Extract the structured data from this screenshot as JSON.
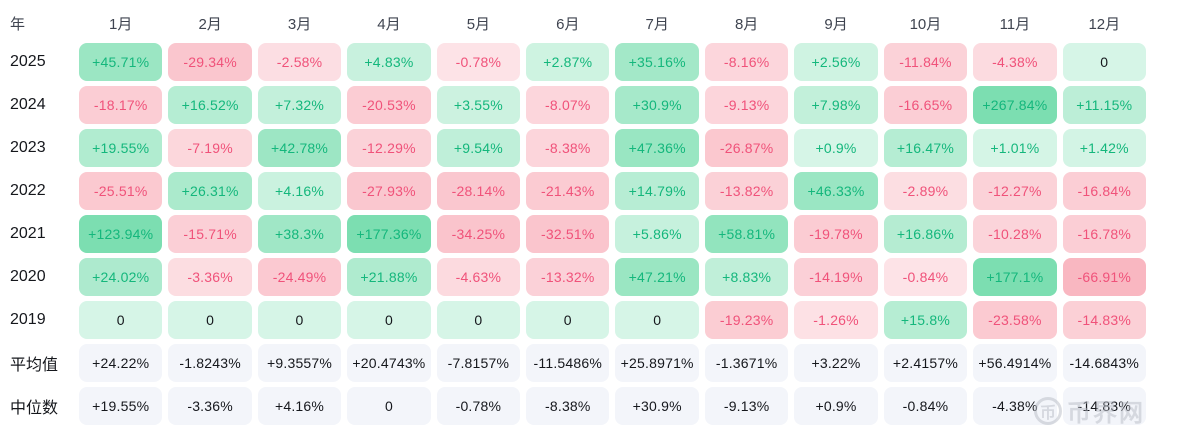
{
  "table": {
    "corner_label": "年",
    "months": [
      "1月",
      "2月",
      "3月",
      "4月",
      "5月",
      "6月",
      "7月",
      "8月",
      "9月",
      "10月",
      "11月",
      "12月"
    ],
    "rows": [
      {
        "label": "2025",
        "type": "year",
        "values": [
          "+45.71%",
          "-29.34%",
          "-2.58%",
          "+4.83%",
          "-0.78%",
          "+2.87%",
          "+35.16%",
          "-8.16%",
          "+2.56%",
          "-11.84%",
          "-4.38%",
          "0"
        ]
      },
      {
        "label": "2024",
        "type": "year",
        "values": [
          "-18.17%",
          "+16.52%",
          "+7.32%",
          "-20.53%",
          "+3.55%",
          "-8.07%",
          "+30.9%",
          "-9.13%",
          "+7.98%",
          "-16.65%",
          "+267.84%",
          "+11.15%"
        ]
      },
      {
        "label": "2023",
        "type": "year",
        "values": [
          "+19.55%",
          "-7.19%",
          "+42.78%",
          "-12.29%",
          "+9.54%",
          "-8.38%",
          "+47.36%",
          "-26.87%",
          "+0.9%",
          "+16.47%",
          "+1.01%",
          "+1.42%"
        ]
      },
      {
        "label": "2022",
        "type": "year",
        "values": [
          "-25.51%",
          "+26.31%",
          "+4.16%",
          "-27.93%",
          "-28.14%",
          "-21.43%",
          "+14.79%",
          "-13.82%",
          "+46.33%",
          "-2.89%",
          "-12.27%",
          "-16.84%"
        ]
      },
      {
        "label": "2021",
        "type": "year",
        "values": [
          "+123.94%",
          "-15.71%",
          "+38.3%",
          "+177.36%",
          "-34.25%",
          "-32.51%",
          "+5.86%",
          "+58.81%",
          "-19.78%",
          "+16.86%",
          "-10.28%",
          "-16.78%"
        ]
      },
      {
        "label": "2020",
        "type": "year",
        "values": [
          "+24.02%",
          "-3.36%",
          "-24.49%",
          "+21.88%",
          "-4.63%",
          "-13.32%",
          "+47.21%",
          "+8.83%",
          "-14.19%",
          "-0.84%",
          "+177.1%",
          "-66.91%"
        ]
      },
      {
        "label": "2019",
        "type": "year",
        "values": [
          "0",
          "0",
          "0",
          "0",
          "0",
          "0",
          "0",
          "-19.23%",
          "-1.26%",
          "+15.8%",
          "-23.58%",
          "-14.83%"
        ]
      },
      {
        "label": "平均值",
        "type": "stat",
        "values": [
          "+24.22%",
          "-1.8243%",
          "+9.3557%",
          "+20.4743%",
          "-7.8157%",
          "-11.5486%",
          "+25.8971%",
          "-1.3671%",
          "+3.22%",
          "+2.4157%",
          "+56.4914%",
          "-14.6843%"
        ]
      },
      {
        "label": "中位数",
        "type": "stat",
        "values": [
          "+19.55%",
          "-3.36%",
          "+4.16%",
          "0",
          "-0.78%",
          "-8.38%",
          "+30.9%",
          "-9.13%",
          "+0.9%",
          "-0.84%",
          "-4.38%",
          "-14.83%"
        ]
      }
    ]
  },
  "colors": {
    "positive_text": "#14b77c",
    "negative_text": "#f0527a",
    "neutral_text": "#15171c",
    "stat_bg": "#f3f5fa",
    "stat_text": "#15171c",
    "header_text": "#3f4450"
  },
  "watermark": {
    "text": "币界网",
    "icon": "coin-icon",
    "icon_glyph": "币"
  },
  "chart_data": {
    "type": "heatmap",
    "title": "",
    "x_categories": [
      "1月",
      "2月",
      "3月",
      "4月",
      "5月",
      "6月",
      "7月",
      "8月",
      "9月",
      "10月",
      "11月",
      "12月"
    ],
    "y_categories": [
      "2025",
      "2024",
      "2023",
      "2022",
      "2021",
      "2020",
      "2019",
      "平均值",
      "中位数"
    ],
    "unit": "%",
    "series": [
      {
        "name": "2025",
        "values": [
          45.71,
          -29.34,
          -2.58,
          4.83,
          -0.78,
          2.87,
          35.16,
          -8.16,
          2.56,
          -11.84,
          -4.38,
          0
        ]
      },
      {
        "name": "2024",
        "values": [
          -18.17,
          16.52,
          7.32,
          -20.53,
          3.55,
          -8.07,
          30.9,
          -9.13,
          7.98,
          -16.65,
          267.84,
          11.15
        ]
      },
      {
        "name": "2023",
        "values": [
          19.55,
          -7.19,
          42.78,
          -12.29,
          9.54,
          -8.38,
          47.36,
          -26.87,
          0.9,
          16.47,
          1.01,
          1.42
        ]
      },
      {
        "name": "2022",
        "values": [
          -25.51,
          26.31,
          4.16,
          -27.93,
          -28.14,
          -21.43,
          14.79,
          -13.82,
          46.33,
          -2.89,
          -12.27,
          -16.84
        ]
      },
      {
        "name": "2021",
        "values": [
          123.94,
          -15.71,
          38.3,
          177.36,
          -34.25,
          -32.51,
          5.86,
          58.81,
          -19.78,
          16.86,
          -10.28,
          -16.78
        ]
      },
      {
        "name": "2020",
        "values": [
          24.02,
          -3.36,
          -24.49,
          21.88,
          -4.63,
          -13.32,
          47.21,
          8.83,
          -14.19,
          -0.84,
          177.1,
          -66.91
        ]
      },
      {
        "name": "2019",
        "values": [
          0,
          0,
          0,
          0,
          0,
          0,
          0,
          -19.23,
          -1.26,
          15.8,
          -23.58,
          -14.83
        ]
      },
      {
        "name": "平均值",
        "values": [
          24.22,
          -1.8243,
          9.3557,
          20.4743,
          -7.8157,
          -11.5486,
          25.8971,
          -1.3671,
          3.22,
          2.4157,
          56.4914,
          -14.6843
        ]
      },
      {
        "name": "中位数",
        "values": [
          19.55,
          -3.36,
          4.16,
          0,
          -0.78,
          -8.38,
          30.9,
          -9.13,
          0.9,
          -0.84,
          -4.38,
          -14.83
        ]
      }
    ],
    "legend_position": "none",
    "color_scale": {
      "positive": "green",
      "negative": "red",
      "zero": "pale-green"
    }
  }
}
